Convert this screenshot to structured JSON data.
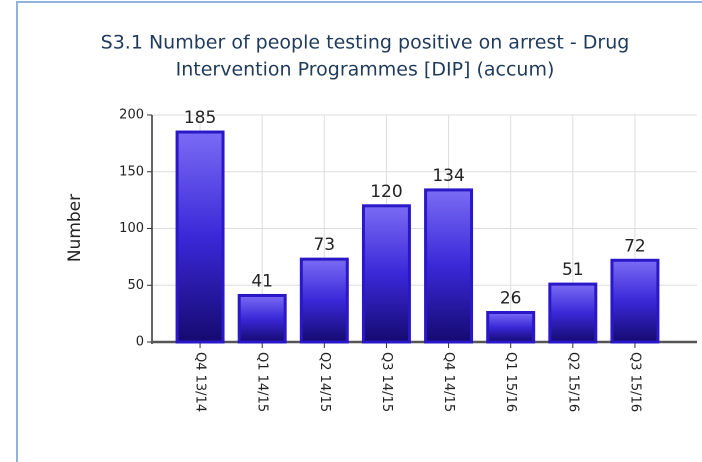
{
  "chart_data": {
    "type": "bar",
    "title": [
      "S3.1 Number of people testing positive on arrest - Drug",
      "Intervention Programmes [DIP] (accum)"
    ],
    "y_label": "Number",
    "categories": [
      "Q4 13/14",
      "Q1 14/15",
      "Q2 14/15",
      "Q3 14/15",
      "Q4 14/15",
      "Q1 15/16",
      "Q2 15/16",
      "Q3 15/16"
    ],
    "values": [
      185,
      41,
      73,
      120,
      134,
      26,
      51,
      72
    ],
    "color": "#2a17c8",
    "ylim": [
      0,
      200
    ],
    "yticks": [
      0,
      50,
      100,
      150,
      200
    ],
    "grid": true
  }
}
